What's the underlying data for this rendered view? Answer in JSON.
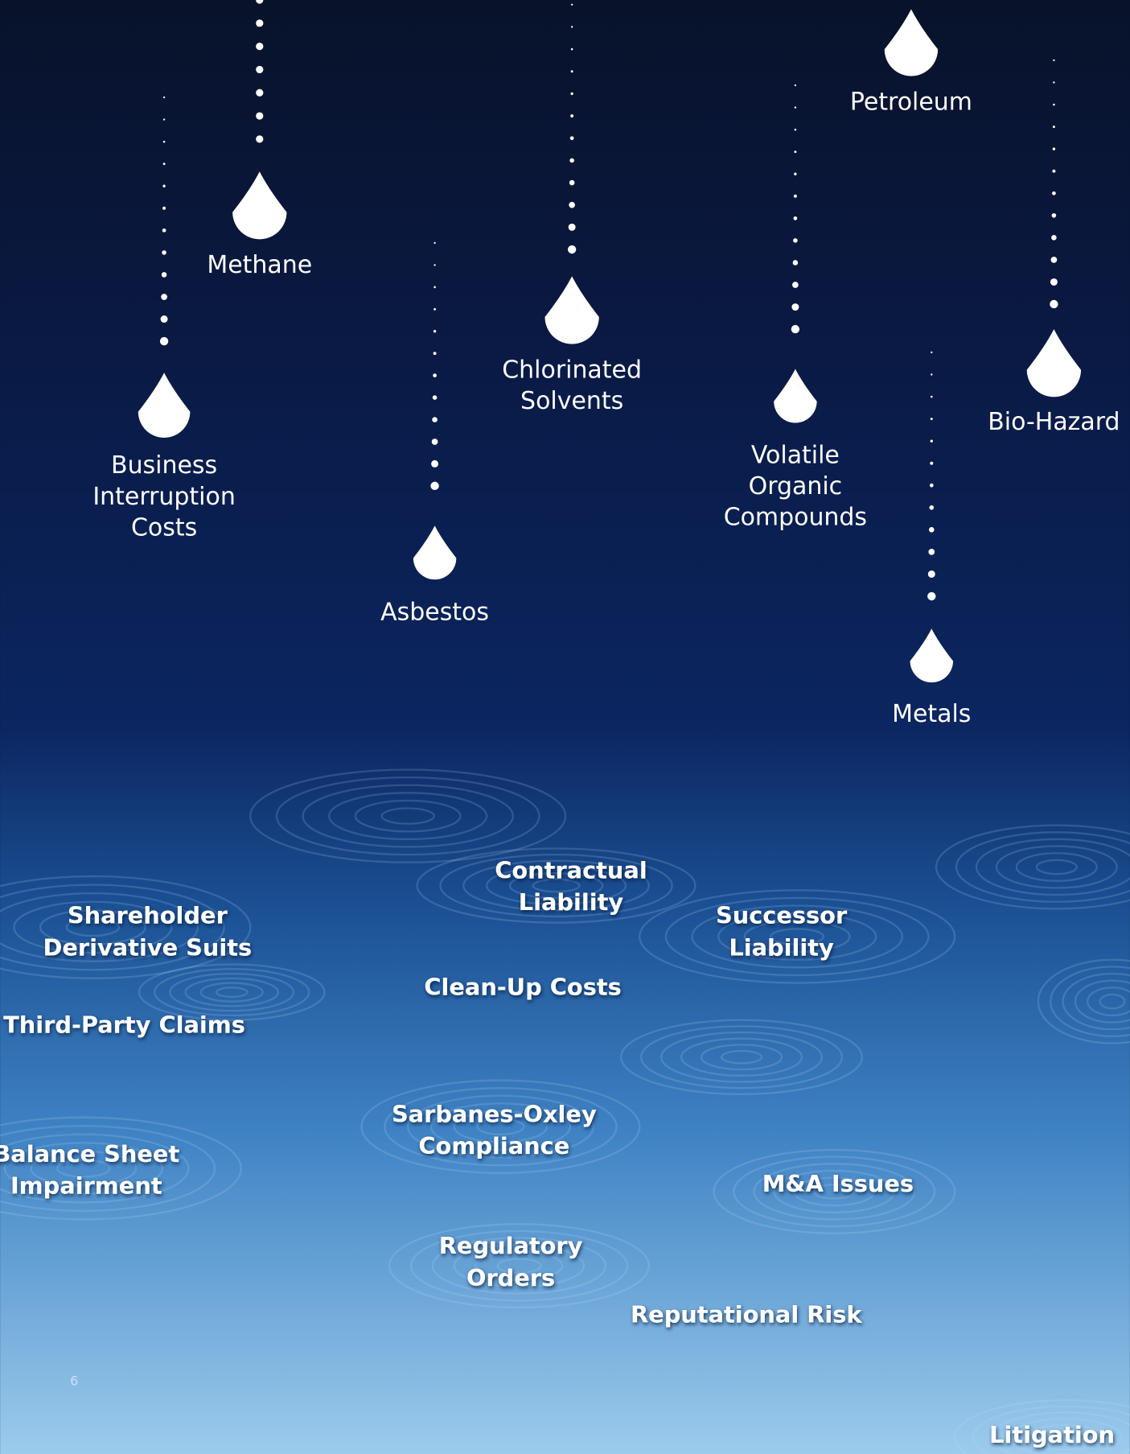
{
  "drops": [
    {
      "lines": [
        "Business",
        "Interruption",
        "Costs"
      ]
    },
    {
      "lines": [
        "Methane"
      ]
    },
    {
      "lines": [
        "Asbestos"
      ]
    },
    {
      "lines": [
        "Chlorinated",
        "Solvents"
      ]
    },
    {
      "lines": [
        "Volatile",
        "Organic",
        "Compounds"
      ]
    },
    {
      "lines": [
        "Petroleum"
      ]
    },
    {
      "lines": [
        "Bio-Hazard"
      ]
    },
    {
      "lines": [
        "Metals"
      ]
    }
  ],
  "consequences": [
    {
      "lines": [
        "Contractual",
        "Liability"
      ]
    },
    {
      "lines": [
        "Shareholder",
        "Derivative Suits"
      ]
    },
    {
      "lines": [
        "Successor",
        "Liability"
      ]
    },
    {
      "lines": [
        "Clean-Up Costs"
      ]
    },
    {
      "lines": [
        "Third-Party Claims"
      ]
    },
    {
      "lines": [
        "Sarbanes-Oxley",
        "Compliance"
      ]
    },
    {
      "lines": [
        "Balance Sheet",
        "Impairment"
      ]
    },
    {
      "lines": [
        "M&A Issues"
      ]
    },
    {
      "lines": [
        "Regulatory",
        "Orders"
      ]
    },
    {
      "lines": [
        "Reputational Risk"
      ]
    },
    {
      "lines": [
        "Litigation"
      ]
    }
  ],
  "page_number": "6"
}
